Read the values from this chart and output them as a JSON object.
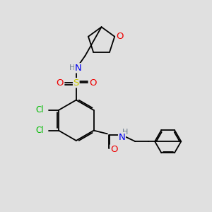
{
  "background_color": "#e0e0e0",
  "atom_colors": {
    "C": "#000000",
    "H": "#708090",
    "N": "#0000ee",
    "O": "#ee0000",
    "S": "#cccc00",
    "Cl": "#00bb00"
  },
  "bond_lw": 1.3,
  "font_size": 8.5,
  "figsize": [
    3.0,
    3.0
  ],
  "dpi": 100
}
